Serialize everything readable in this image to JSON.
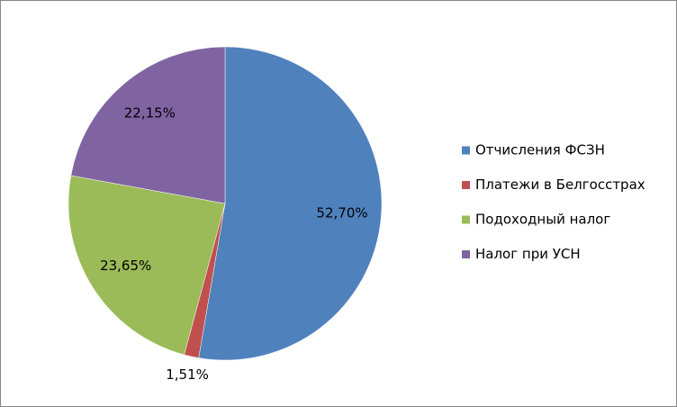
{
  "chart_data": {
    "type": "pie",
    "categories": [
      "Отчисления ФСЗН",
      "Платежи в Белгосстрах",
      "Подоходный налог",
      "Налог при УСН"
    ],
    "values": [
      52.7,
      1.51,
      23.65,
      22.15
    ],
    "value_labels": [
      "52,70%",
      "1,51%",
      "23,65%",
      "22,15%"
    ],
    "colors": [
      "#4f81bd",
      "#c0504d",
      "#9bbb59",
      "#8064a2"
    ],
    "legend": "right"
  }
}
